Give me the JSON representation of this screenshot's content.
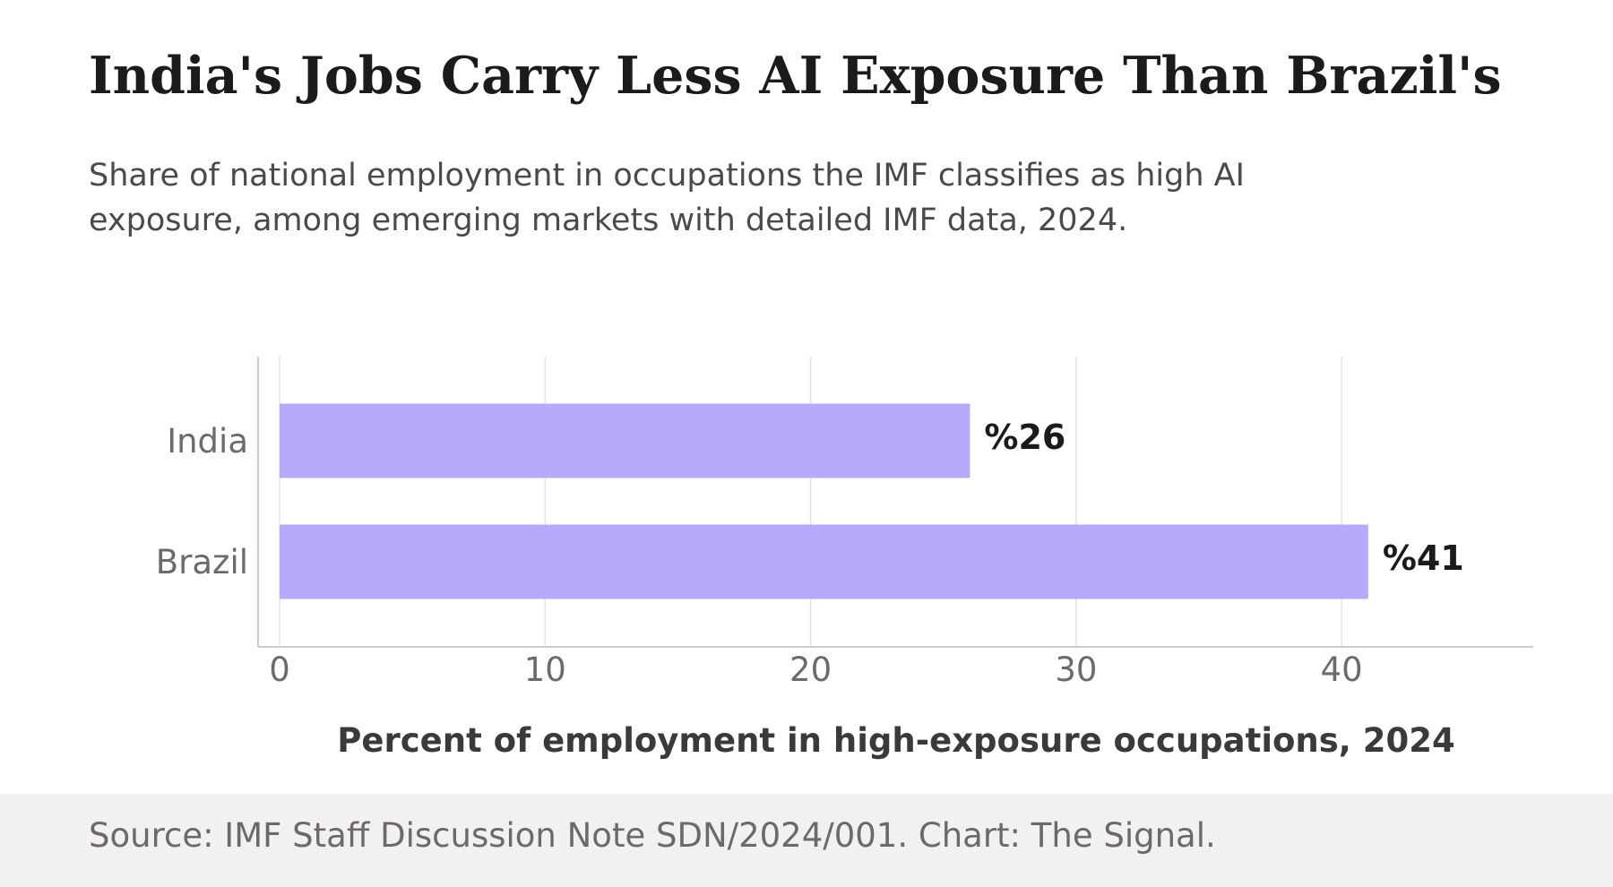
{
  "header": {
    "title": "India's Jobs Carry Less AI Exposure Than Brazil's",
    "subtitle": "Share of national employment in occupations the IMF classifies as high AI exposure, among emerging markets with detailed IMF data, 2024."
  },
  "footer": {
    "source": "Source: IMF Staff Discussion Note SDN/2024/001. Chart: The Signal."
  },
  "colors": {
    "bar": "#b8a9fd",
    "grid": "#e3e3e3",
    "axis": "#cccccc",
    "tick_label": "#6b6b6b",
    "value_label": "#1b1b1b",
    "xlabel": "#3a3a3a"
  },
  "chart_data": {
    "type": "bar",
    "orientation": "horizontal",
    "categories": [
      "India",
      "Brazil"
    ],
    "values": [
      26,
      41
    ],
    "value_labels": [
      "%26",
      "%41"
    ],
    "xlabel": "Percent of employment in high-exposure occupations, 2024",
    "ylabel": "",
    "xlim": [
      0,
      46.8
    ],
    "xticks": [
      0,
      10,
      20,
      30,
      40
    ],
    "grid": true,
    "legend": "none"
  }
}
